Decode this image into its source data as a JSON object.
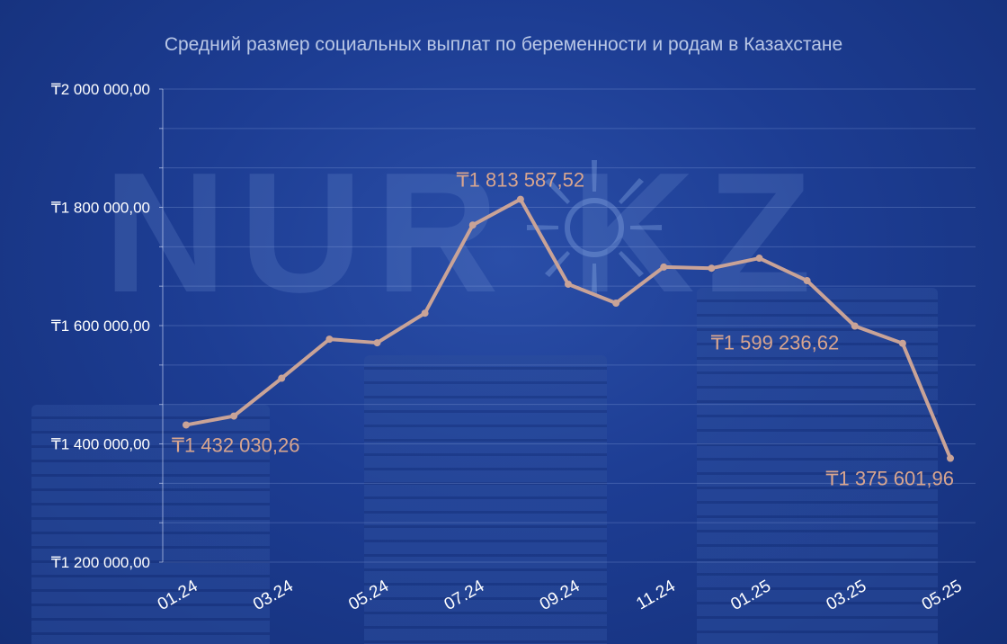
{
  "chart_data": {
    "type": "line",
    "title": "Средний размер социальных выплат по беременности и родам в Казахстане",
    "xlabel": "",
    "ylabel": "",
    "ylim": [
      1200000,
      2000000
    ],
    "y_ticks": [
      1200000,
      1400000,
      1600000,
      1800000,
      2000000
    ],
    "y_tick_labels": [
      "₸1 200 000,00",
      "₸1 400 000,00",
      "₸1 600 000,00",
      "₸1 800 000,00",
      "₸2 000 000,00"
    ],
    "x_tick_labels": [
      "01.24",
      "03.24",
      "05.24",
      "07.24",
      "09.24",
      "11.24",
      "01.25",
      "03.25",
      "05.25"
    ],
    "x_tick_indices": [
      0,
      2,
      4,
      6,
      8,
      10,
      12,
      14,
      16
    ],
    "grid": true,
    "legend": "none",
    "series": [
      {
        "values": [
          1432030.26,
          1447000,
          1511000,
          1577000,
          1571000,
          1621000,
          1770000,
          1813587.52,
          1670000,
          1638000,
          1699000,
          1697000,
          1714000,
          1676000,
          1599236.62,
          1570000,
          1375601.96
        ]
      }
    ],
    "annotations": [
      {
        "index": 0,
        "text": "₸1 432 030,26"
      },
      {
        "index": 7,
        "text": "₸1 813 587,52"
      },
      {
        "index": 14,
        "text": "₸1 599 236,62"
      },
      {
        "index": 16,
        "text": "₸1 375 601,96"
      }
    ],
    "colors": {
      "line": "#c9a397",
      "annotation": "#d8a58f",
      "axis_text": "#ffffff",
      "title": "#b9c7e6",
      "grid": "rgba(150,175,230,0.28)"
    }
  },
  "watermark": {
    "text": "NUR KZ",
    "icon": "sun-icon"
  }
}
